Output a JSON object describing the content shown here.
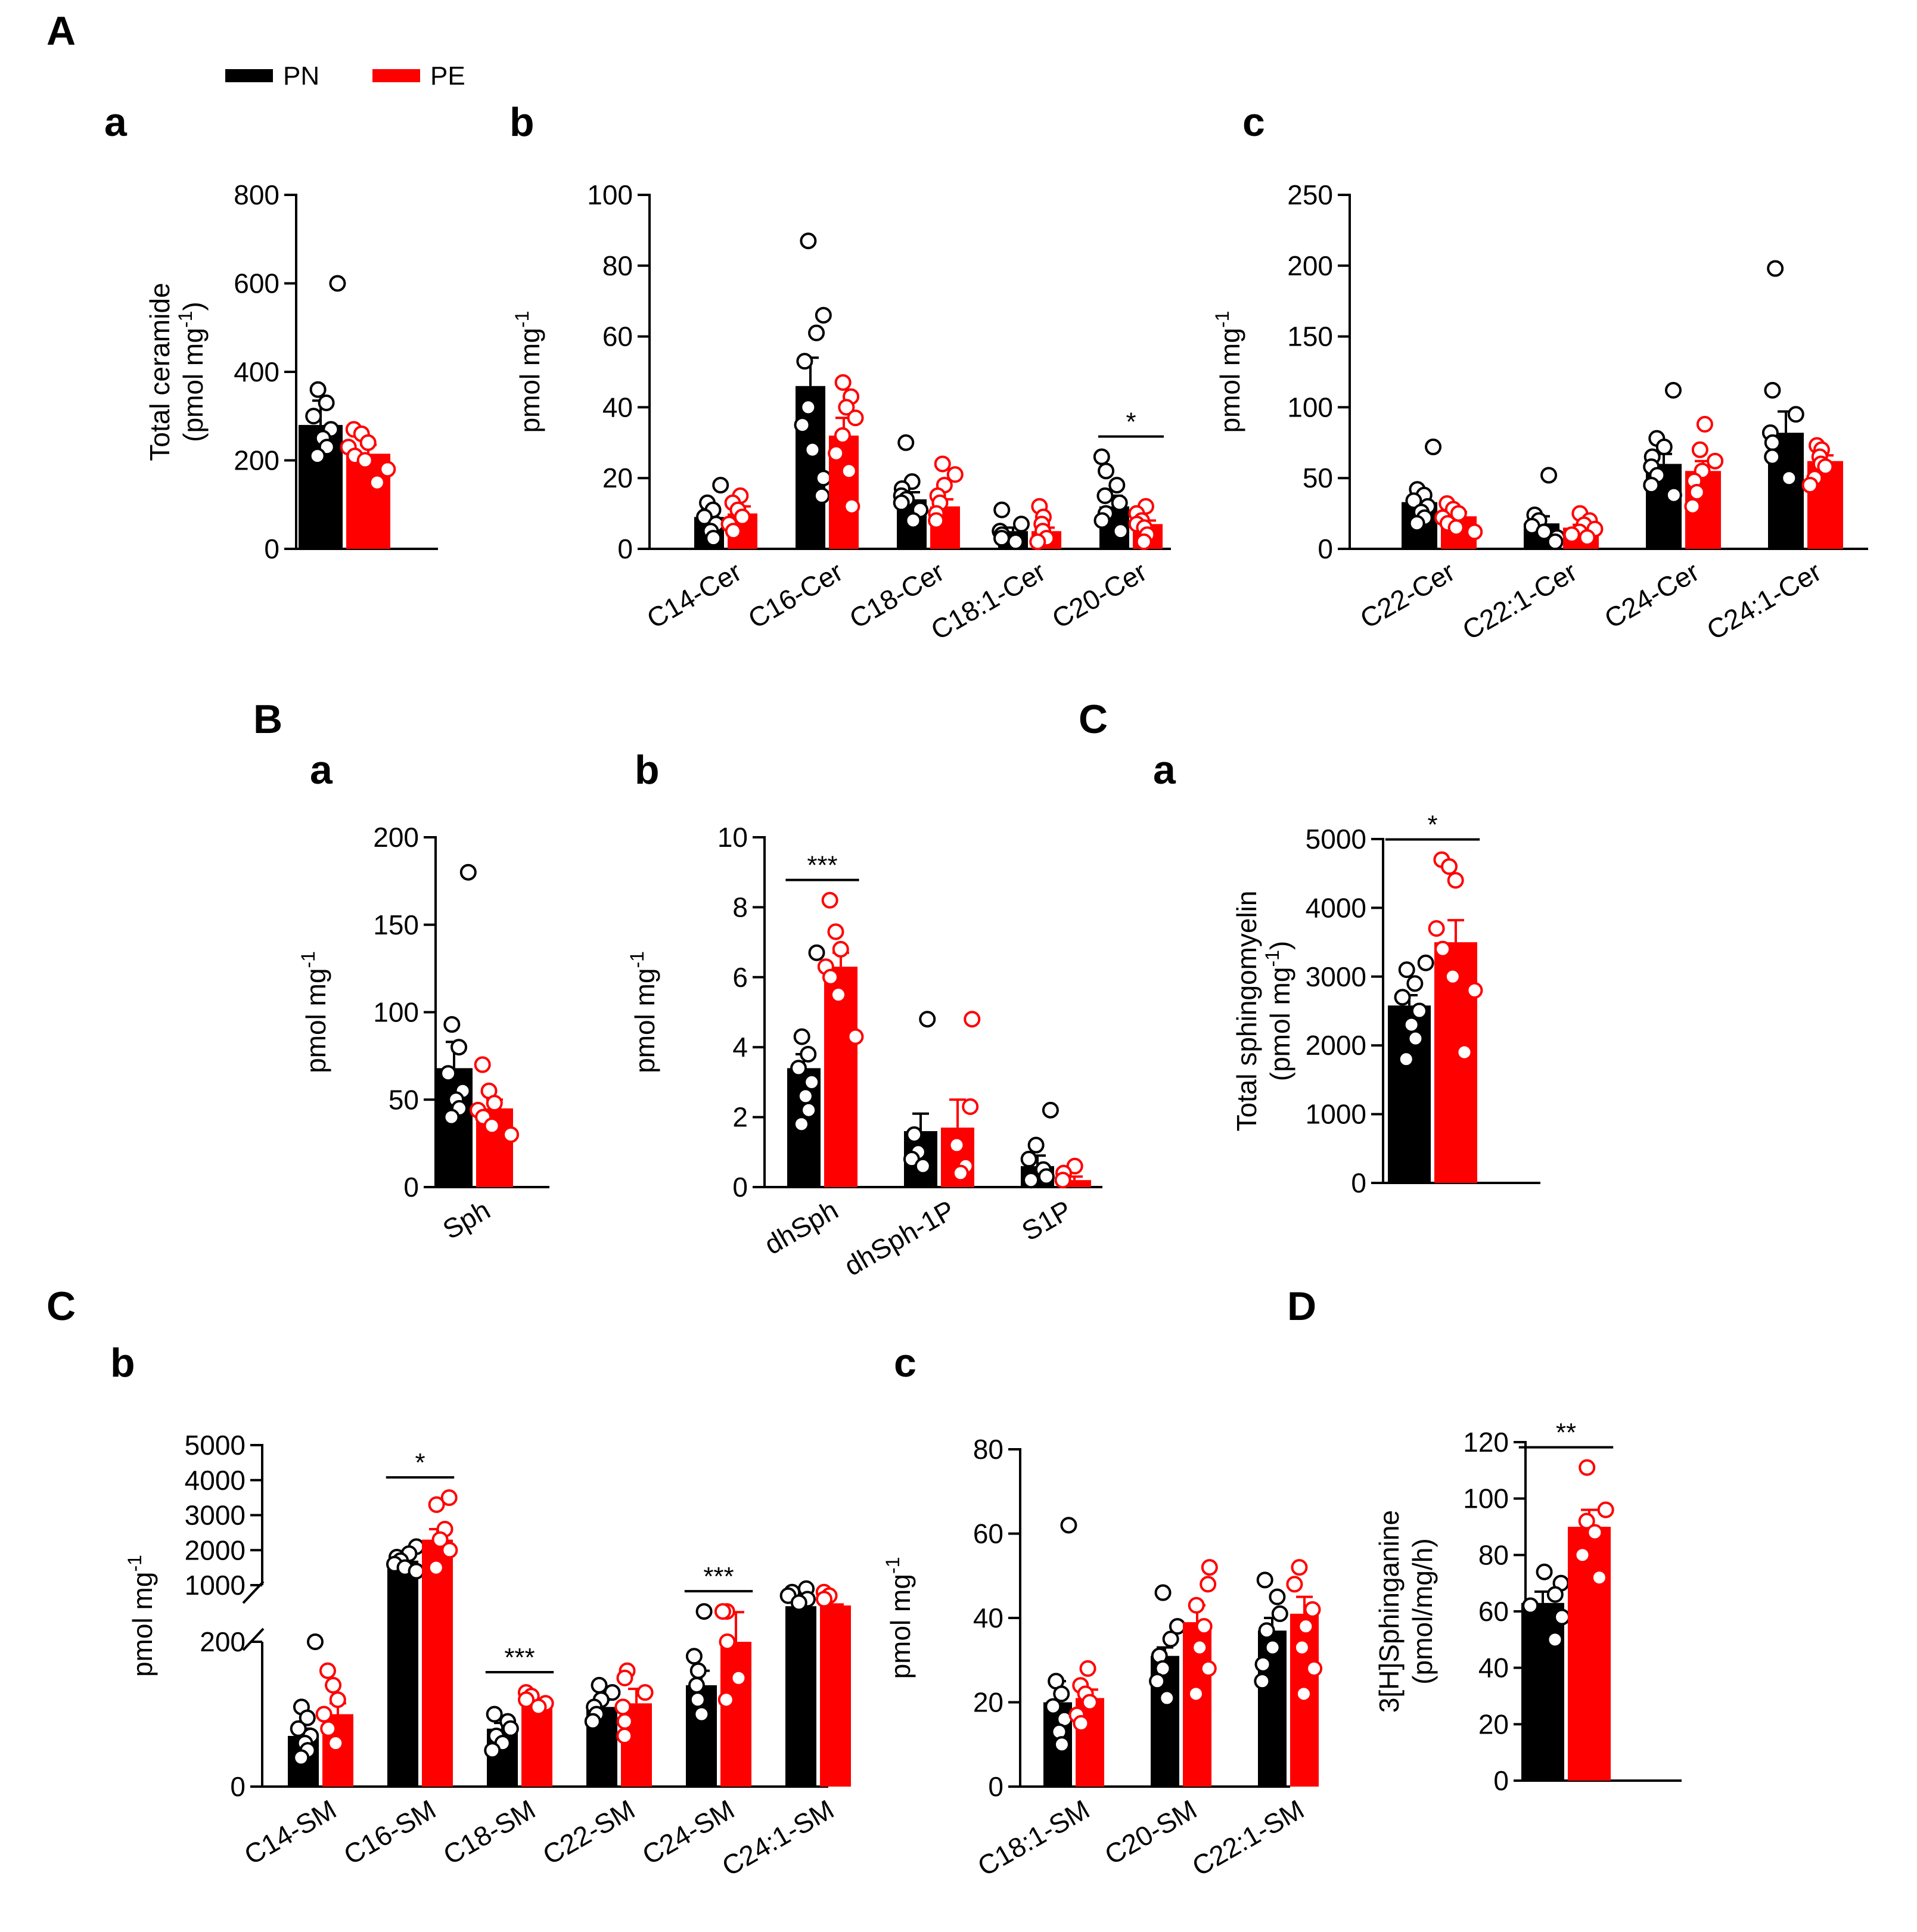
{
  "colors": {
    "PN": "#000000",
    "PE": "#ff0000"
  },
  "legend": [
    {
      "label": "PN",
      "color": "#000000"
    },
    {
      "label": "PE",
      "color": "#ff0000"
    }
  ],
  "panel_labels": {
    "A": "A",
    "A_a": "a",
    "A_b": "b",
    "A_c": "c",
    "B": "B",
    "B_a": "a",
    "B_b": "b",
    "C_top": "C",
    "C_a": "a",
    "C": "C",
    "C_b": "b",
    "C_c": "c",
    "D": "D"
  },
  "chart_data": [
    {
      "id": "Aa",
      "type": "bar",
      "title": "",
      "ylabel_main": "Total ceramide",
      "ylabel_unit": "(pmol mg",
      "ylabel_unit_sup": "-1",
      "ylabel_unit_end": ")",
      "ylim": [
        0,
        800
      ],
      "yticks": [
        0,
        200,
        400,
        600,
        800
      ],
      "categories": [
        ""
      ],
      "series": [
        {
          "name": "PN",
          "values": [
            280
          ],
          "errors": [
            55
          ]
        },
        {
          "name": "PE",
          "values": [
            215
          ],
          "errors": [
            20
          ]
        }
      ],
      "points": [
        [
          [
            600,
            360,
            330,
            300,
            270,
            250,
            230,
            210
          ]
        ],
        [
          [
            270,
            260,
            240,
            230,
            210,
            200,
            180,
            150
          ]
        ]
      ],
      "significance": []
    },
    {
      "id": "Ab",
      "type": "bar",
      "title": "",
      "ylabel_main": "pmol mg",
      "ylabel_sup": "-1",
      "ylim": [
        0,
        100
      ],
      "yticks": [
        0,
        20,
        40,
        60,
        80,
        100
      ],
      "categories": [
        "C14-Cer",
        "C16-Cer",
        "C18-Cer",
        "C18:1-Cer",
        "C20-Cer"
      ],
      "series": [
        {
          "name": "PN",
          "values": [
            9,
            46,
            14,
            5,
            12
          ],
          "errors": [
            2,
            8,
            2,
            1,
            3
          ]
        },
        {
          "name": "PE",
          "values": [
            10,
            32,
            12,
            5,
            7
          ],
          "errors": [
            2,
            5,
            2,
            1,
            1
          ]
        }
      ],
      "points": [
        [
          [
            18,
            13,
            11,
            9,
            7,
            5,
            3
          ],
          [
            87,
            66,
            61,
            53,
            40,
            35,
            28,
            20,
            15
          ],
          [
            30,
            19,
            17,
            15,
            14,
            13,
            11,
            8
          ],
          [
            11,
            7,
            5,
            4,
            3,
            2
          ],
          [
            26,
            22,
            18,
            15,
            13,
            10,
            8,
            5
          ]
        ],
        [
          [
            15,
            13,
            11,
            9,
            7,
            5
          ],
          [
            47,
            43,
            40,
            37,
            32,
            27,
            22,
            12
          ],
          [
            24,
            21,
            18,
            15,
            13,
            10,
            8
          ],
          [
            12,
            9,
            7,
            5,
            3,
            2
          ],
          [
            12,
            10,
            8,
            7,
            6,
            4,
            2
          ]
        ]
      ],
      "significance": [
        {
          "category": 4,
          "label": "*"
        }
      ]
    },
    {
      "id": "Ac",
      "type": "bar",
      "title": "",
      "ylabel_main": "pmol mg",
      "ylabel_sup": "-1",
      "ylim": [
        0,
        250
      ],
      "yticks": [
        0,
        50,
        100,
        150,
        200,
        250
      ],
      "categories": [
        "C22-Cer",
        "C22:1-Cer",
        "C24-Cer",
        "C24:1-Cer"
      ],
      "series": [
        {
          "name": "PN",
          "values": [
            33,
            18,
            60,
            82
          ],
          "errors": [
            6,
            5,
            7,
            15
          ]
        },
        {
          "name": "PE",
          "values": [
            23,
            15,
            55,
            62
          ],
          "errors": [
            3,
            2,
            7,
            4
          ]
        }
      ],
      "points": [
        [
          [
            72,
            42,
            38,
            34,
            30,
            26,
            22,
            18
          ],
          [
            52,
            24,
            20,
            16,
            12,
            8,
            5
          ],
          [
            112,
            78,
            72,
            65,
            58,
            52,
            45,
            38
          ],
          [
            198,
            112,
            95,
            82,
            75,
            65,
            50
          ]
        ],
        [
          [
            32,
            28,
            25,
            22,
            18,
            15,
            12
          ],
          [
            25,
            20,
            17,
            14,
            12,
            10,
            8
          ],
          [
            88,
            70,
            62,
            55,
            48,
            40,
            30
          ],
          [
            73,
            70,
            65,
            60,
            58,
            50,
            45
          ]
        ]
      ],
      "significance": []
    },
    {
      "id": "Ba",
      "type": "bar",
      "title": "",
      "ylabel_main": "pmol mg",
      "ylabel_sup": "-1",
      "ylim": [
        0,
        200
      ],
      "yticks": [
        0,
        50,
        100,
        150,
        200
      ],
      "categories": [
        "Sph"
      ],
      "series": [
        {
          "name": "PN",
          "values": [
            68
          ],
          "errors": [
            15
          ]
        },
        {
          "name": "PE",
          "values": [
            45
          ],
          "errors": [
            5
          ]
        }
      ],
      "points": [
        [
          [
            180,
            93,
            80,
            65,
            55,
            50,
            45,
            40
          ]
        ],
        [
          [
            70,
            55,
            48,
            44,
            40,
            35,
            30
          ]
        ]
      ],
      "significance": []
    },
    {
      "id": "Bb",
      "type": "bar",
      "title": "",
      "ylabel_main": "pmol mg",
      "ylabel_sup": "-1",
      "ylim": [
        0,
        10
      ],
      "yticks": [
        0,
        2,
        4,
        6,
        8,
        10
      ],
      "categories": [
        "dhSph",
        "dhSph-1P",
        "S1P"
      ],
      "series": [
        {
          "name": "PN",
          "values": [
            3.4,
            1.6,
            0.6
          ],
          "errors": [
            0.4,
            0.5,
            0.3
          ]
        },
        {
          "name": "PE",
          "values": [
            6.3,
            1.7,
            0.2
          ],
          "errors": [
            0.4,
            0.8,
            0.1
          ]
        }
      ],
      "points": [
        [
          [
            6.7,
            4.3,
            3.8,
            3.4,
            3.0,
            2.6,
            2.2,
            1.8
          ],
          [
            4.8,
            1.5,
            1.0,
            0.8,
            0.6
          ],
          [
            2.2,
            1.2,
            0.8,
            0.5,
            0.3,
            0.2
          ]
        ],
        [
          [
            8.2,
            7.3,
            6.8,
            6.3,
            6.0,
            5.5,
            4.3
          ],
          [
            4.8,
            2.3,
            1.2,
            0.6,
            0.4
          ],
          [
            0.6,
            0.4,
            0.2
          ]
        ]
      ],
      "significance": [
        {
          "category": 0,
          "label": "***"
        }
      ]
    },
    {
      "id": "Ca",
      "type": "bar",
      "title": "",
      "ylabel_main": "Total sphingomyelin",
      "ylabel_unit": "(pmol mg",
      "ylabel_unit_sup": "-1",
      "ylabel_unit_end": ")",
      "ylim": [
        0,
        5000
      ],
      "yticks": [
        0,
        1000,
        2000,
        3000,
        4000,
        5000
      ],
      "categories": [
        ""
      ],
      "series": [
        {
          "name": "PN",
          "values": [
            2580
          ],
          "errors": [
            150
          ]
        },
        {
          "name": "PE",
          "values": [
            3500
          ],
          "errors": [
            320
          ]
        }
      ],
      "points": [
        [
          [
            3200,
            3100,
            2900,
            2700,
            2500,
            2300,
            2100,
            1800
          ]
        ],
        [
          [
            4700,
            4600,
            4400,
            3700,
            3400,
            3000,
            2800,
            1900
          ]
        ]
      ],
      "significance": [
        {
          "category": 0,
          "label": "*"
        }
      ]
    },
    {
      "id": "Cb",
      "type": "bar",
      "title": "",
      "ylabel_main": "pmol mg",
      "ylabel_sup": "-1",
      "broken_axis": {
        "lower": [
          0,
          200
        ],
        "upper": [
          1000,
          5000
        ]
      },
      "yticks": [
        0,
        200,
        1000,
        2000,
        3000,
        4000,
        5000
      ],
      "categories": [
        "C14-SM",
        "C16-SM",
        "C18-SM",
        "C22-SM",
        "C24-SM",
        "C24:1-SM"
      ],
      "series": [
        {
          "name": "PN",
          "values": [
            70,
            1700,
            80,
            110,
            140,
            400
          ],
          "errors": [
            10,
            150,
            8,
            10,
            20,
            30
          ]
        },
        {
          "name": "PE",
          "values": [
            100,
            2300,
            115,
            115,
            200,
            420
          ],
          "errors": [
            15,
            300,
            6,
            20,
            30,
            30
          ]
        }
      ],
      "points": [
        [
          [
            200,
            110,
            95,
            80,
            70,
            60,
            50,
            40
          ],
          [
            2100,
            1900,
            1800,
            1700,
            1600,
            1500,
            1400
          ],
          [
            100,
            90,
            80,
            70,
            60,
            50
          ],
          [
            140,
            130,
            120,
            110,
            100,
            90
          ],
          [
            250,
            180,
            160,
            140,
            120,
            100
          ],
          [
            900,
            800,
            700,
            600,
            500
          ]
        ],
        [
          [
            160,
            140,
            120,
            100,
            80,
            60
          ],
          [
            3500,
            3300,
            2600,
            2300,
            2000,
            1500
          ],
          [
            130,
            125,
            120,
            115,
            110
          ],
          [
            160,
            150,
            130,
            110,
            90,
            70
          ],
          [
            250,
            250,
            200,
            150,
            120
          ],
          [
            800,
            700,
            600
          ]
        ]
      ],
      "significance": [
        {
          "category": 1,
          "label": "*"
        },
        {
          "category": 2,
          "label": "***"
        },
        {
          "category": 4,
          "label": "***"
        }
      ]
    },
    {
      "id": "Cc",
      "type": "bar",
      "title": "",
      "ylabel_main": "pmol mg",
      "ylabel_sup": "-1",
      "ylim": [
        0,
        80
      ],
      "yticks": [
        0,
        20,
        40,
        60,
        80
      ],
      "categories": [
        "C18:1-SM",
        "C20-SM",
        "C22:1-SM"
      ],
      "series": [
        {
          "name": "PN",
          "values": [
            20,
            31,
            37
          ],
          "errors": [
            5,
            2,
            3
          ]
        },
        {
          "name": "PE",
          "values": [
            21,
            39,
            41
          ],
          "errors": [
            2,
            4,
            4
          ]
        }
      ],
      "points": [
        [
          [
            62,
            25,
            22,
            19,
            16,
            13,
            10
          ],
          [
            46,
            38,
            35,
            31,
            28,
            25,
            21
          ],
          [
            49,
            45,
            41,
            37,
            33,
            29,
            25
          ]
        ],
        [
          [
            28,
            24,
            22,
            20,
            17,
            15
          ],
          [
            52,
            48,
            43,
            38,
            33,
            28,
            22
          ],
          [
            52,
            48,
            42,
            38,
            33,
            28,
            22
          ]
        ]
      ],
      "significance": []
    },
    {
      "id": "D",
      "type": "bar",
      "title": "",
      "ylabel_main": "3[H]Sphinganine",
      "ylabel_unit": "(pmol/mg/h)",
      "ylim": [
        0,
        120
      ],
      "yticks": [
        0,
        20,
        40,
        60,
        80,
        100,
        120
      ],
      "categories": [
        ""
      ],
      "series": [
        {
          "name": "PN",
          "values": [
            63
          ],
          "errors": [
            4
          ]
        },
        {
          "name": "PE",
          "values": [
            90
          ],
          "errors": [
            6
          ]
        }
      ],
      "points": [
        [
          [
            74,
            70,
            66,
            62,
            58,
            50
          ]
        ],
        [
          [
            111,
            96,
            92,
            88,
            80,
            72
          ]
        ]
      ],
      "significance": [
        {
          "category": 0,
          "label": "**"
        }
      ]
    }
  ]
}
